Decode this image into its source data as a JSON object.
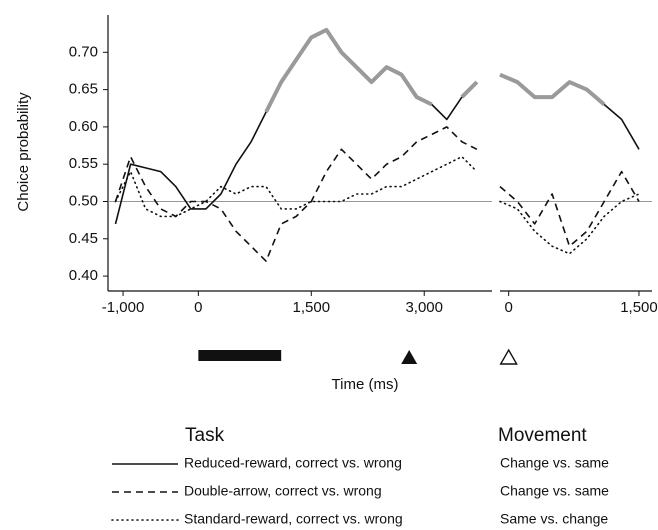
{
  "chart_data": [
    {
      "type": "line",
      "ylabel": "Choice probability",
      "xlabel": "Time (ms)",
      "x": [
        -1100,
        -900,
        -700,
        -500,
        -300,
        -100,
        100,
        300,
        500,
        700,
        900,
        1100,
        1300,
        1500,
        1700,
        1900,
        2100,
        2300,
        2500,
        2700,
        2900,
        3100,
        3300,
        3500,
        3700
      ],
      "series": [
        {
          "name": "Reduced-reward, correct vs. wrong",
          "color": "#111111",
          "dash": "solid",
          "linewidth": 1.6,
          "values": [
            0.47,
            0.55,
            0.545,
            0.54,
            0.52,
            0.49,
            0.49,
            0.51,
            0.55,
            0.58,
            0.62,
            null,
            null,
            null,
            null,
            null,
            null,
            null,
            null,
            null,
            null,
            0.63,
            0.61,
            0.64,
            null
          ]
        },
        {
          "name": "Double-arrow, correct vs. wrong",
          "color": "#111111",
          "dash": "dashed",
          "linewidth": 1.6,
          "values": [
            0.5,
            0.56,
            0.52,
            0.49,
            0.48,
            0.5,
            0.5,
            0.49,
            0.46,
            0.44,
            0.42,
            0.47,
            0.48,
            0.5,
            0.54,
            0.57,
            0.55,
            0.53,
            0.55,
            0.56,
            0.58,
            0.59,
            0.6,
            0.58,
            0.57
          ]
        },
        {
          "name": "Standard-reward, correct vs. wrong",
          "color": "#111111",
          "dash": "dotted",
          "linewidth": 1.6,
          "values": [
            0.5,
            0.54,
            0.49,
            0.48,
            0.48,
            0.49,
            0.5,
            0.52,
            0.51,
            0.52,
            0.52,
            0.49,
            0.49,
            0.5,
            0.5,
            0.5,
            0.51,
            0.51,
            0.52,
            0.52,
            0.53,
            0.54,
            0.55,
            0.56,
            0.54
          ]
        },
        {
          "color": "#9a9a9a",
          "dash": "solid",
          "linewidth": 4,
          "values": [
            null,
            null,
            null,
            null,
            null,
            null,
            null,
            null,
            null,
            null,
            0.62,
            0.66,
            0.69,
            0.72,
            0.73,
            0.7,
            0.68,
            0.66,
            0.68,
            0.67,
            0.64,
            0.63,
            null,
            0.64,
            0.66
          ]
        }
      ],
      "xlim": [
        -1200,
        3900
      ],
      "ylim": [
        0.38,
        0.75
      ],
      "xticks": [
        {
          "value": -1000,
          "label": "-1,000"
        },
        0,
        {
          "value": 1500,
          "label": "1,500"
        },
        {
          "value": 3000,
          "label": "3,000"
        }
      ],
      "yticks": [
        {
          "value": 0.4,
          "label": "0.40"
        },
        {
          "value": 0.45,
          "label": "0.45"
        },
        {
          "value": 0.5,
          "label": "0.50"
        },
        {
          "value": 0.55,
          "label": "0.55"
        },
        {
          "value": 0.6,
          "label": "0.60"
        },
        {
          "value": 0.65,
          "label": "0.65"
        },
        {
          "value": 0.7,
          "label": "0.70"
        }
      ],
      "refline": 0.5,
      "cue_bar": [
        0,
        1100
      ],
      "target_marker": 2800
    },
    {
      "type": "line",
      "x": [
        -100,
        100,
        300,
        500,
        700,
        900,
        1100,
        1300,
        1500
      ],
      "series": [
        {
          "color": "#111111",
          "dash": "solid",
          "linewidth": 1.6,
          "values": [
            null,
            null,
            null,
            null,
            null,
            null,
            0.63,
            0.61,
            0.57
          ]
        },
        {
          "color": "#111111",
          "dash": "dashed",
          "linewidth": 1.6,
          "values": [
            0.52,
            0.5,
            0.47,
            0.51,
            0.44,
            0.46,
            0.5,
            0.54,
            0.5
          ]
        },
        {
          "color": "#111111",
          "dash": "dotted",
          "linewidth": 1.6,
          "values": [
            0.5,
            0.49,
            0.46,
            0.44,
            0.43,
            0.45,
            0.48,
            0.5,
            0.51
          ]
        },
        {
          "color": "#9a9a9a",
          "dash": "solid",
          "linewidth": 4,
          "values": [
            0.67,
            0.66,
            0.64,
            0.64,
            0.66,
            0.65,
            0.63,
            null,
            null
          ]
        }
      ],
      "xlim": [
        -100,
        1650
      ],
      "ylim": [
        0.38,
        0.75
      ],
      "xticks": [
        0,
        {
          "value": 1500,
          "label": "1,500"
        }
      ],
      "refline": 0.5,
      "movement_marker": 0
    }
  ],
  "legend": {
    "title": "Task",
    "movement_title": "Movement",
    "movement": [
      "Change vs. same",
      "Change vs. same",
      "Same vs. change"
    ]
  }
}
